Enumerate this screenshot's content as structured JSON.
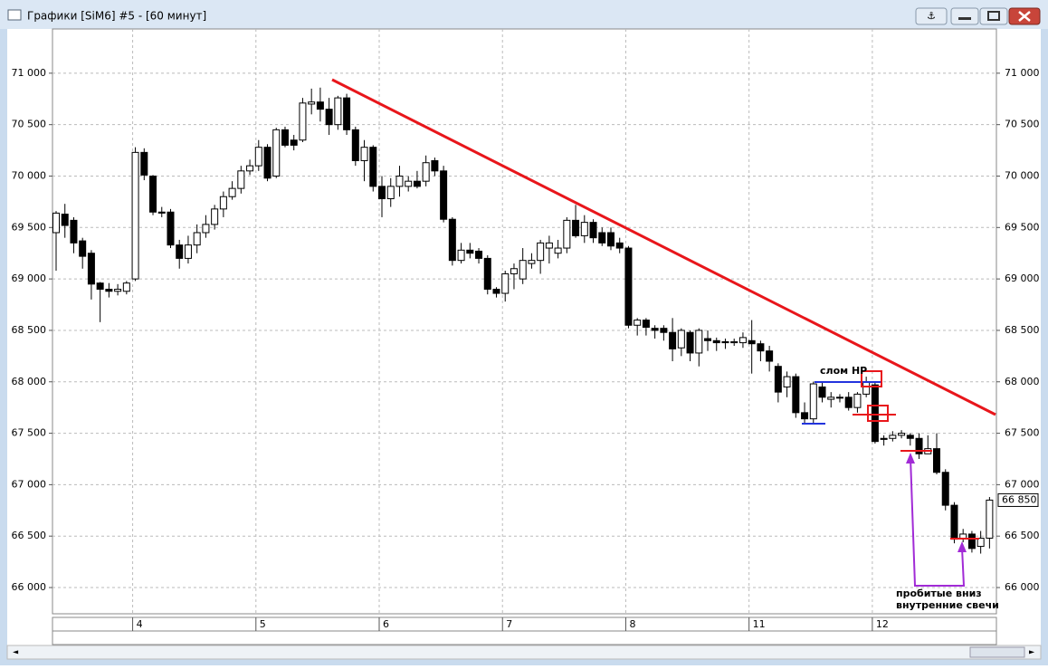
{
  "window": {
    "title": "Графики [SiM6] #5 - [60 минут]"
  },
  "chart_data": {
    "type": "candlestick",
    "categories": [
      null,
      null,
      null,
      null,
      null,
      null,
      null,
      null,
      null,
      "4",
      null,
      null,
      null,
      null,
      null,
      null,
      null,
      null,
      null,
      null,
      null,
      null,
      null,
      "5",
      null,
      null,
      null,
      null,
      null,
      null,
      null,
      null,
      null,
      null,
      null,
      null,
      null,
      "6",
      null,
      null,
      null,
      null,
      null,
      null,
      null,
      null,
      null,
      null,
      null,
      null,
      null,
      "7",
      null,
      null,
      null,
      null,
      null,
      null,
      null,
      null,
      null,
      null,
      null,
      null,
      null,
      "8",
      null,
      null,
      null,
      null,
      null,
      null,
      null,
      null,
      null,
      null,
      null,
      null,
      null,
      "11",
      null,
      null,
      null,
      null,
      null,
      null,
      null,
      null,
      null,
      null,
      null,
      null,
      null,
      "12",
      null,
      null,
      null,
      null,
      null,
      null,
      null,
      null,
      null,
      null,
      null,
      null,
      null
    ],
    "open": [
      69450,
      69630,
      69570,
      69370,
      69250,
      68960,
      68900,
      68880,
      68880,
      69000,
      70230,
      70000,
      69650,
      69650,
      69330,
      69200,
      69330,
      69450,
      69530,
      69680,
      69800,
      69880,
      70050,
      70100,
      70280,
      70000,
      70450,
      70350,
      70350,
      70700,
      70720,
      70650,
      70500,
      70760,
      70450,
      70150,
      70280,
      69900,
      69780,
      69900,
      69900,
      69950,
      69950,
      70150,
      70050,
      69580,
      69180,
      69280,
      69270,
      69200,
      68900,
      68860,
      69050,
      69000,
      69150,
      69180,
      69300,
      69250,
      69300,
      69570,
      69420,
      69550,
      69450,
      69450,
      69350,
      69300,
      68550,
      68600,
      68520,
      68520,
      68480,
      68330,
      68480,
      68280,
      68420,
      68400,
      68390,
      68380,
      68380,
      68400,
      68370,
      68300,
      68150,
      67950,
      68050,
      67700,
      67640,
      67950,
      67830,
      67850,
      67850,
      67750,
      67880,
      67970,
      67450,
      67450,
      67480,
      67480,
      67450,
      67300,
      67350,
      67120,
      66800,
      66480,
      66520,
      66400,
      66480
    ],
    "high": [
      69660,
      69730,
      69600,
      69400,
      69280,
      68970,
      68960,
      68950,
      68980,
      70280,
      70270,
      70010,
      69700,
      69680,
      69380,
      69420,
      69530,
      69620,
      69720,
      69850,
      69950,
      70100,
      70160,
      70350,
      70310,
      70470,
      70480,
      70400,
      70760,
      70850,
      70860,
      70760,
      70780,
      70800,
      70480,
      70350,
      70300,
      70000,
      69980,
      70100,
      70000,
      70050,
      70200,
      70180,
      70100,
      69600,
      69350,
      69350,
      69300,
      69230,
      68920,
      69080,
      69150,
      69300,
      69250,
      69380,
      69420,
      69380,
      69600,
      69720,
      69620,
      69580,
      69500,
      69500,
      69400,
      69320,
      68620,
      68620,
      68550,
      68550,
      68620,
      68520,
      68500,
      68520,
      68500,
      68430,
      68420,
      68420,
      68480,
      68600,
      68400,
      68350,
      68180,
      68100,
      68080,
      67800,
      68000,
      68000,
      67900,
      67880,
      67900,
      67900,
      68050,
      68000,
      67480,
      67520,
      67530,
      67500,
      67500,
      67480,
      67500,
      67150,
      66830,
      66570,
      66550,
      66550,
      66880
    ],
    "low": [
      69080,
      69400,
      69250,
      69100,
      68800,
      68580,
      68820,
      68840,
      68850,
      68980,
      69960,
      69620,
      69600,
      69300,
      69100,
      69150,
      69250,
      69400,
      69480,
      69600,
      69770,
      69830,
      70010,
      70050,
      69950,
      69980,
      70280,
      70250,
      70330,
      70600,
      70530,
      70400,
      70450,
      70400,
      70100,
      69950,
      69850,
      69600,
      69700,
      69800,
      69850,
      69880,
      69900,
      70000,
      69550,
      69130,
      69150,
      69200,
      69150,
      68850,
      68820,
      68780,
      68900,
      68950,
      69100,
      69050,
      69150,
      69200,
      69250,
      69400,
      69350,
      69350,
      69320,
      69280,
      69250,
      68520,
      68450,
      68450,
      68420,
      68400,
      68200,
      68250,
      68200,
      68150,
      68300,
      68300,
      68320,
      68350,
      68330,
      68080,
      68200,
      68100,
      67800,
      67850,
      67650,
      67600,
      67600,
      67800,
      67750,
      67800,
      67720,
      67700,
      67850,
      67400,
      67380,
      67420,
      67450,
      67380,
      67250,
      67300,
      67100,
      66750,
      66430,
      66440,
      66340,
      66330,
      66380
    ],
    "close": [
      69640,
      69520,
      69350,
      69220,
      68950,
      68900,
      68880,
      68900,
      68960,
      70230,
      70010,
      69650,
      69640,
      69330,
      69200,
      69330,
      69450,
      69530,
      69680,
      69800,
      69880,
      70050,
      70100,
      70280,
      69980,
      70450,
      70300,
      70300,
      70710,
      70720,
      70650,
      70500,
      70760,
      70450,
      70150,
      70280,
      69900,
      69780,
      69900,
      70000,
      69950,
      69900,
      70130,
      70050,
      69580,
      69180,
      69280,
      69250,
      69200,
      68900,
      68860,
      69050,
      69100,
      69180,
      69180,
      69350,
      69350,
      69300,
      69570,
      69420,
      69550,
      69400,
      69350,
      69320,
      69300,
      68550,
      68600,
      68530,
      68500,
      68480,
      68320,
      68500,
      68280,
      68500,
      68400,
      68380,
      68380,
      68390,
      68430,
      68370,
      68300,
      68200,
      67900,
      68050,
      67700,
      67640,
      67980,
      67850,
      67850,
      67850,
      67750,
      67880,
      68000,
      67420,
      67440,
      67480,
      67500,
      67450,
      67300,
      67350,
      67120,
      66800,
      66470,
      66520,
      66380,
      66480,
      66850
    ],
    "ylim": [
      65745,
      71430
    ],
    "yticks": [
      {
        "value": 66000,
        "label": "66 000"
      },
      {
        "value": 66500,
        "label": "66 500"
      },
      {
        "value": 67000,
        "label": "67 000"
      },
      {
        "value": 67500,
        "label": "67 500"
      },
      {
        "value": 68000,
        "label": "68 000"
      },
      {
        "value": 68500,
        "label": "68 500"
      },
      {
        "value": 69000,
        "label": "69 000"
      },
      {
        "value": 69500,
        "label": "69 500"
      },
      {
        "value": 70000,
        "label": "70 000"
      },
      {
        "value": 70500,
        "label": "70 500"
      },
      {
        "value": 71000,
        "label": "71 000"
      }
    ],
    "grid": true,
    "up_color": "#ffffff",
    "down_color": "#000000",
    "last_price": {
      "value": 66850,
      "label": "66 850"
    },
    "annotations": [
      "слом НР",
      "пробитые вниз",
      "внутренние свечи"
    ]
  }
}
